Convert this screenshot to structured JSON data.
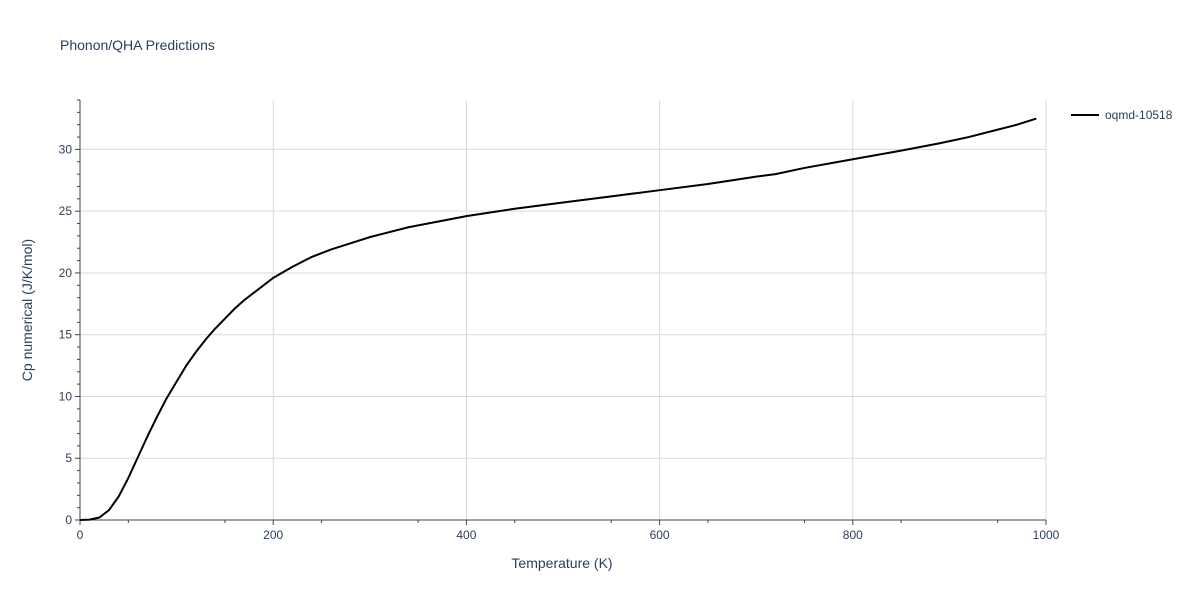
{
  "chart_data": {
    "type": "line",
    "title": "Phonon/QHA Predictions",
    "xlabel": "Temperature (K)",
    "ylabel": "Cp numerical (J/K/mol)",
    "xlim": [
      0,
      1000
    ],
    "ylim": [
      0,
      34
    ],
    "x_ticks": [
      0,
      200,
      400,
      600,
      800,
      1000
    ],
    "y_ticks": [
      0,
      5,
      10,
      15,
      20,
      25,
      30
    ],
    "grid": true,
    "legend_position": "top-right",
    "series": [
      {
        "name": "oqmd-10518",
        "color": "#000000",
        "x": [
          0,
          10,
          20,
          30,
          40,
          50,
          60,
          70,
          80,
          90,
          100,
          110,
          120,
          130,
          140,
          150,
          160,
          170,
          180,
          190,
          200,
          220,
          240,
          260,
          280,
          300,
          340,
          400,
          450,
          500,
          550,
          600,
          650,
          700,
          720,
          750,
          800,
          850,
          890,
          920,
          950,
          970,
          990
        ],
        "y": [
          0,
          0.03,
          0.2,
          0.8,
          1.9,
          3.4,
          5.1,
          6.8,
          8.4,
          9.9,
          11.2,
          12.5,
          13.6,
          14.6,
          15.5,
          16.3,
          17.1,
          17.8,
          18.4,
          19.0,
          19.6,
          20.5,
          21.3,
          21.9,
          22.4,
          22.9,
          23.7,
          24.6,
          25.2,
          25.7,
          26.2,
          26.7,
          27.2,
          27.8,
          28.0,
          28.5,
          29.2,
          29.9,
          30.5,
          31.0,
          31.6,
          32.0,
          32.5
        ]
      }
    ]
  }
}
